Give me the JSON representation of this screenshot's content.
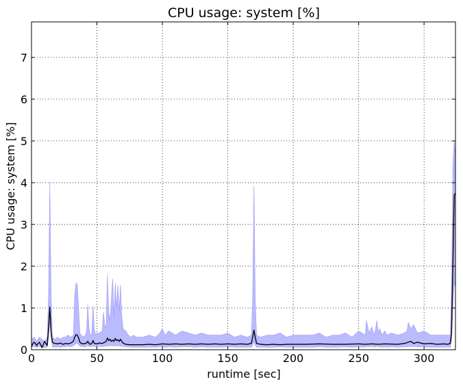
{
  "chart_data": {
    "type": "area",
    "title": "CPU usage: system [%]",
    "xlabel": "runtime [sec]",
    "ylabel": "CPU usage: system [%]",
    "xlim": [
      0,
      324
    ],
    "ylim": [
      0,
      7.85
    ],
    "xticks": [
      0,
      50,
      100,
      150,
      200,
      250,
      300
    ],
    "yticks": [
      0,
      1,
      2,
      3,
      4,
      5,
      6,
      7
    ],
    "grid": true,
    "colors": {
      "band_fill": "#b3b3ff",
      "band_stroke": "#9b9bf5",
      "line": "#000000"
    },
    "band": {
      "x": [
        0,
        2,
        4,
        6,
        8,
        10,
        12,
        13,
        14,
        15,
        16,
        18,
        20,
        22,
        24,
        26,
        28,
        30,
        32,
        33,
        34,
        35,
        36,
        37,
        38,
        40,
        42,
        43,
        44,
        45,
        46,
        47,
        48,
        49,
        50,
        52,
        54,
        55,
        56,
        57,
        58,
        59,
        60,
        61,
        62,
        63,
        64,
        65,
        66,
        67,
        68,
        69,
        70,
        72,
        74,
        76,
        78,
        80,
        85,
        90,
        95,
        98,
        100,
        102,
        105,
        110,
        115,
        120,
        125,
        130,
        135,
        140,
        145,
        150,
        155,
        160,
        165,
        168,
        169,
        170,
        171,
        172,
        175,
        180,
        185,
        190,
        195,
        200,
        205,
        210,
        215,
        220,
        225,
        230,
        235,
        240,
        245,
        250,
        255,
        256,
        258,
        260,
        262,
        264,
        265,
        266,
        268,
        270,
        272,
        275,
        280,
        285,
        287,
        288,
        290,
        292,
        295,
        300,
        305,
        310,
        315,
        318,
        320,
        321,
        322,
        323,
        324
      ],
      "upper": [
        0.25,
        0.3,
        0.2,
        0.3,
        0.25,
        0.2,
        0.3,
        1.3,
        4.02,
        1.3,
        0.3,
        0.25,
        0.3,
        0.25,
        0.3,
        0.3,
        0.35,
        0.3,
        0.35,
        1.3,
        1.6,
        1.55,
        1.0,
        0.4,
        0.35,
        0.3,
        0.4,
        1.08,
        0.5,
        0.35,
        0.35,
        1.05,
        0.5,
        0.35,
        0.4,
        0.4,
        0.45,
        0.9,
        0.6,
        0.5,
        1.8,
        0.9,
        0.7,
        1.2,
        1.7,
        0.8,
        1.6,
        1.0,
        1.55,
        0.9,
        1.55,
        0.8,
        0.5,
        0.45,
        0.35,
        0.3,
        0.35,
        0.3,
        0.3,
        0.35,
        0.3,
        0.4,
        0.5,
        0.35,
        0.45,
        0.35,
        0.45,
        0.4,
        0.35,
        0.4,
        0.35,
        0.35,
        0.35,
        0.4,
        0.3,
        0.35,
        0.3,
        0.35,
        1.2,
        3.92,
        1.2,
        0.35,
        0.3,
        0.35,
        0.35,
        0.4,
        0.3,
        0.35,
        0.35,
        0.35,
        0.35,
        0.4,
        0.3,
        0.35,
        0.35,
        0.4,
        0.3,
        0.45,
        0.35,
        0.7,
        0.4,
        0.55,
        0.35,
        0.7,
        0.4,
        0.5,
        0.35,
        0.45,
        0.35,
        0.4,
        0.35,
        0.4,
        0.45,
        0.65,
        0.5,
        0.6,
        0.4,
        0.45,
        0.35,
        0.35,
        0.35,
        0.35,
        0.35,
        1.5,
        4.4,
        5.0,
        4.6
      ],
      "lower": [
        0.06,
        0.08,
        0.05,
        0.08,
        0.07,
        0.05,
        0.07,
        0.3,
        0.7,
        0.3,
        0.07,
        0.06,
        0.07,
        0.06,
        0.07,
        0.07,
        0.08,
        0.07,
        0.1,
        0.12,
        0.15,
        0.15,
        0.12,
        0.08,
        0.08,
        0.07,
        0.08,
        0.1,
        0.08,
        0.07,
        0.08,
        0.09,
        0.08,
        0.07,
        0.08,
        0.08,
        0.08,
        0.08,
        0.08,
        0.08,
        0.1,
        0.09,
        0.09,
        0.1,
        0.1,
        0.09,
        0.09,
        0.09,
        0.09,
        0.09,
        0.09,
        0.08,
        0.08,
        0.07,
        0.07,
        0.06,
        0.06,
        0.06,
        0.06,
        0.06,
        0.06,
        0.07,
        0.07,
        0.06,
        0.07,
        0.06,
        0.07,
        0.07,
        0.06,
        0.07,
        0.06,
        0.06,
        0.06,
        0.07,
        0.06,
        0.06,
        0.06,
        0.06,
        0.1,
        0.2,
        0.1,
        0.06,
        0.06,
        0.06,
        0.06,
        0.07,
        0.06,
        0.06,
        0.06,
        0.06,
        0.06,
        0.07,
        0.06,
        0.06,
        0.06,
        0.07,
        0.06,
        0.07,
        0.06,
        0.08,
        0.07,
        0.08,
        0.06,
        0.08,
        0.07,
        0.07,
        0.06,
        0.07,
        0.06,
        0.07,
        0.06,
        0.07,
        0.07,
        0.08,
        0.07,
        0.08,
        0.07,
        0.07,
        0.06,
        0.06,
        0.06,
        0.06,
        0.06,
        0.2,
        1.0,
        1.6,
        1.5
      ]
    },
    "line": {
      "x": [
        0,
        1,
        2,
        3,
        4,
        5,
        6,
        7,
        8,
        9,
        10,
        11,
        12,
        13,
        14,
        15,
        16,
        17,
        18,
        20,
        22,
        24,
        26,
        28,
        30,
        32,
        33,
        34,
        35,
        36,
        37,
        38,
        40,
        42,
        43,
        44,
        45,
        46,
        47,
        48,
        50,
        52,
        54,
        56,
        57,
        58,
        59,
        60,
        61,
        62,
        63,
        64,
        65,
        66,
        67,
        68,
        69,
        70,
        72,
        75,
        80,
        85,
        90,
        95,
        100,
        105,
        110,
        115,
        120,
        125,
        130,
        135,
        140,
        145,
        150,
        155,
        160,
        165,
        168,
        169,
        170,
        171,
        172,
        175,
        180,
        185,
        190,
        195,
        200,
        210,
        220,
        230,
        240,
        250,
        255,
        260,
        265,
        270,
        280,
        285,
        288,
        290,
        292,
        295,
        300,
        305,
        310,
        315,
        318,
        320,
        321,
        322,
        323,
        324
      ],
      "y": [
        0.08,
        0.14,
        0.18,
        0.15,
        0.1,
        0.15,
        0.18,
        0.12,
        0.05,
        0.12,
        0.2,
        0.15,
        0.1,
        0.5,
        1.02,
        0.4,
        0.18,
        0.16,
        0.15,
        0.14,
        0.16,
        0.13,
        0.15,
        0.14,
        0.16,
        0.2,
        0.3,
        0.36,
        0.35,
        0.28,
        0.18,
        0.15,
        0.14,
        0.16,
        0.2,
        0.15,
        0.13,
        0.15,
        0.22,
        0.15,
        0.14,
        0.16,
        0.15,
        0.18,
        0.2,
        0.28,
        0.22,
        0.25,
        0.2,
        0.23,
        0.2,
        0.27,
        0.22,
        0.24,
        0.2,
        0.25,
        0.2,
        0.16,
        0.13,
        0.12,
        0.12,
        0.12,
        0.13,
        0.12,
        0.14,
        0.13,
        0.14,
        0.13,
        0.14,
        0.13,
        0.14,
        0.13,
        0.14,
        0.13,
        0.14,
        0.13,
        0.14,
        0.13,
        0.15,
        0.3,
        0.47,
        0.3,
        0.15,
        0.13,
        0.12,
        0.13,
        0.12,
        0.13,
        0.13,
        0.13,
        0.14,
        0.13,
        0.13,
        0.14,
        0.13,
        0.14,
        0.13,
        0.14,
        0.13,
        0.15,
        0.18,
        0.2,
        0.15,
        0.18,
        0.14,
        0.15,
        0.13,
        0.14,
        0.13,
        0.15,
        0.4,
        2.0,
        3.7,
        3.75
      ]
    }
  }
}
